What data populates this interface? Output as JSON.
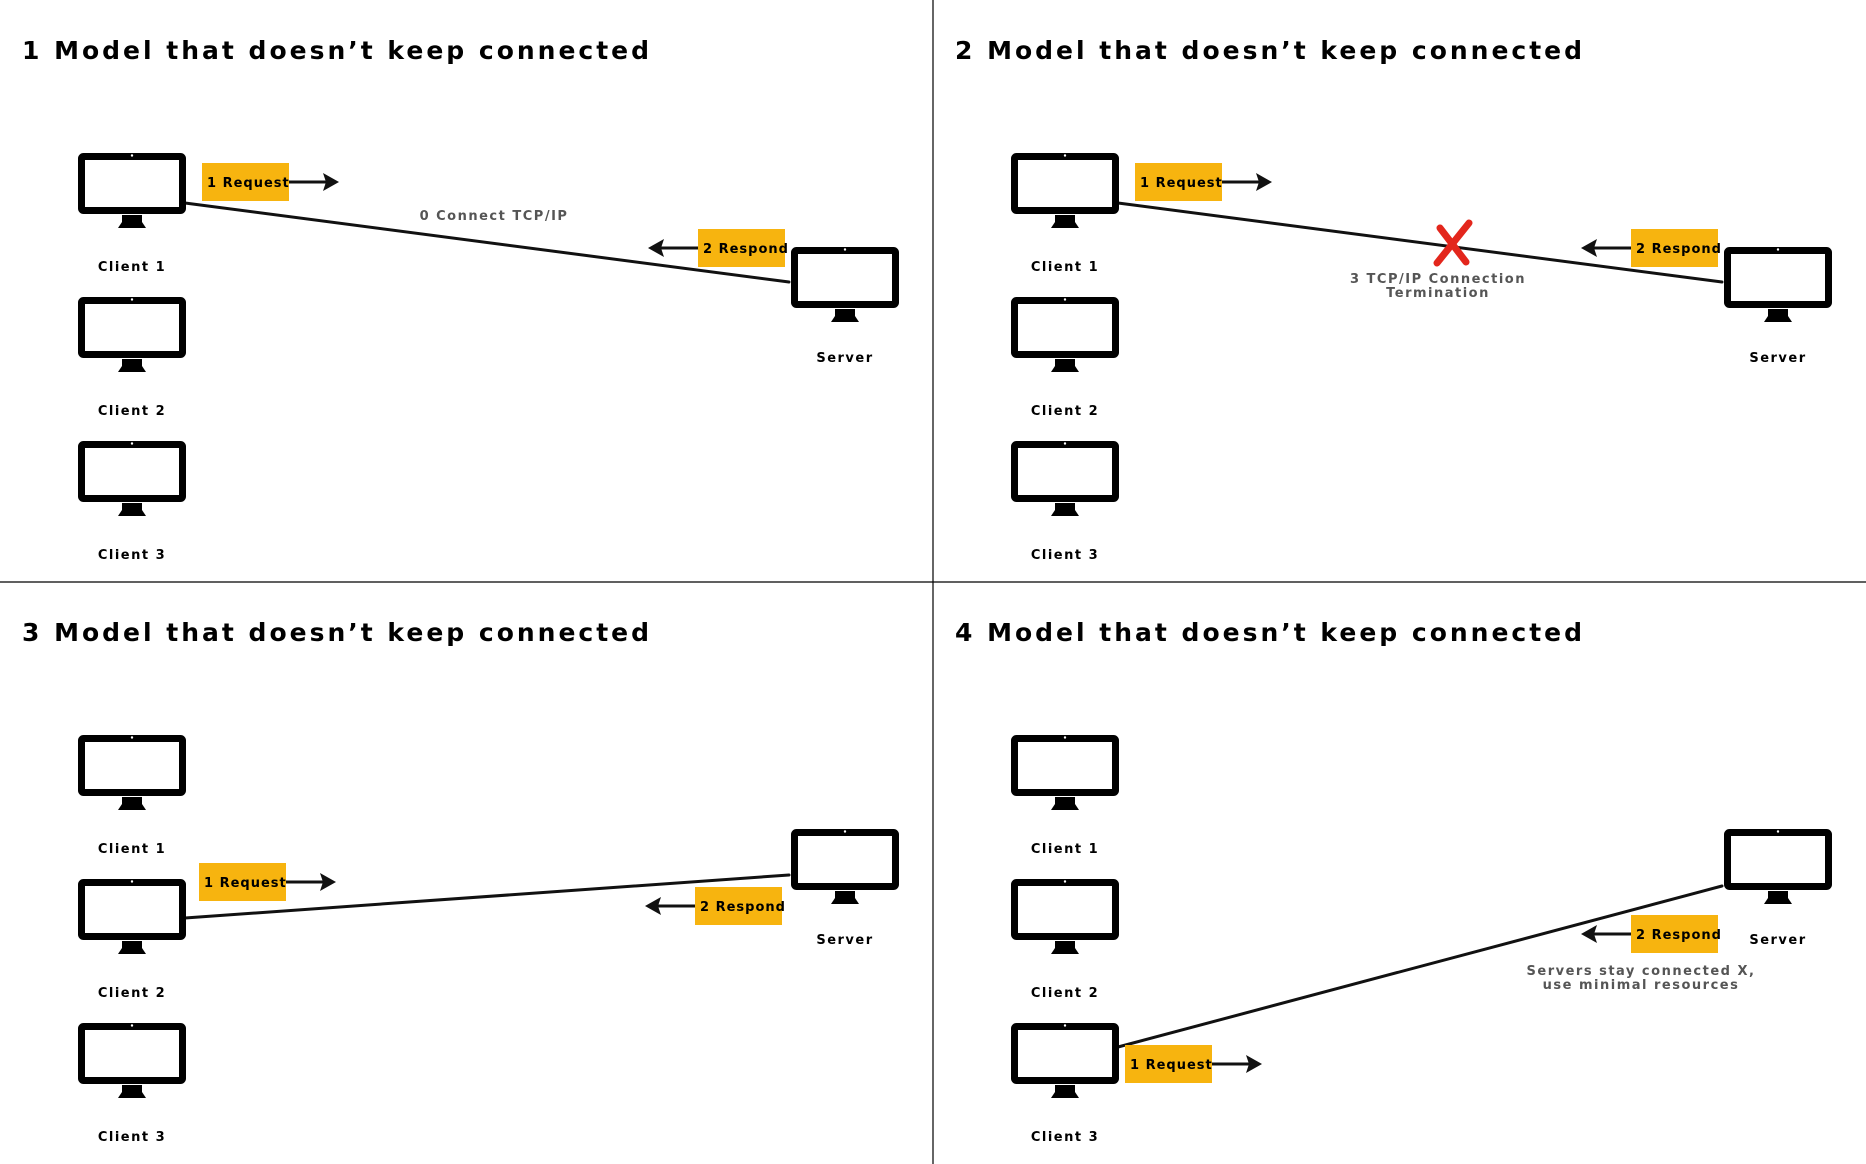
{
  "colors": {
    "tag": "#f7b40f",
    "cross": "#e3261c",
    "note": "#555555",
    "line": "#111111"
  },
  "panels": [
    {
      "title": "1 Model that doesn’t keep connected",
      "clients": [
        "Client 1",
        "Client 2",
        "Client 3"
      ],
      "server": "Server",
      "request": "1 Request",
      "respond": "2 Respond",
      "note": [
        "0 Connect TCP/IP"
      ]
    },
    {
      "title": "2 Model that doesn’t keep connected",
      "clients": [
        "Client 1",
        "Client 2",
        "Client 3"
      ],
      "server": "Server",
      "request": "1 Request",
      "respond": "2 Respond",
      "note": [
        "3 TCP/IP Connection",
        "Termination"
      ],
      "marker": "cross-icon"
    },
    {
      "title": "3 Model that doesn’t keep connected",
      "clients": [
        "Client 1",
        "Client 2",
        "Client 3"
      ],
      "server": "Server",
      "request": "1 Request",
      "respond": "2 Respond",
      "note": []
    },
    {
      "title": "4 Model that doesn’t keep connected",
      "clients": [
        "Client 1",
        "Client 2",
        "Client 3"
      ],
      "server": "Server",
      "request": "1 Request",
      "respond": "2 Respond",
      "note": [
        "Servers stay connected X,",
        "use minimal resources"
      ]
    }
  ]
}
